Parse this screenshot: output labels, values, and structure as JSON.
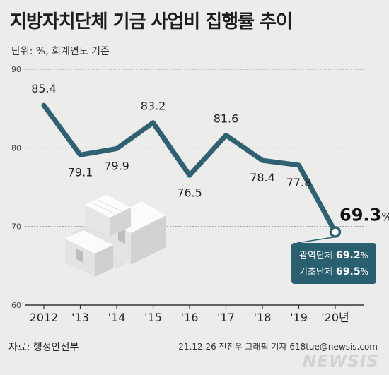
{
  "header": {
    "title": "지방자치단체 기금 사업비 집행률 추이",
    "unit": "단위: %, 회계연도 기준"
  },
  "footer": {
    "source": "자료: 행정안전부",
    "credit": "21.12.26 전진우 그래픽 기자 618tue@newsis.com",
    "logo": "NEWSIS"
  },
  "colors": {
    "line": "#2e6273",
    "callout_bg": "#2a5f70",
    "grid": "#9a9a9a"
  },
  "callout": {
    "items": [
      {
        "label": "광역단체",
        "value": "69.2",
        "unit": "%"
      },
      {
        "label": "기초단체",
        "value": "69.5",
        "unit": "%"
      }
    ]
  },
  "chart_data": {
    "type": "line",
    "categories": [
      "2012",
      "'13",
      "'14",
      "'15",
      "'16",
      "'17",
      "'18",
      "'19",
      "'20년"
    ],
    "values": [
      85.4,
      79.1,
      79.9,
      83.2,
      76.5,
      81.6,
      78.4,
      77.8,
      69.3
    ],
    "value_labels": [
      "85.4",
      "79.1",
      "79.9",
      "83.2",
      "76.5",
      "81.6",
      "78.4",
      "77.8",
      "69.3"
    ],
    "last_value_unit": "%",
    "yticks": [
      60,
      70,
      80,
      90
    ],
    "ylim": [
      60,
      90
    ],
    "grid": true
  }
}
